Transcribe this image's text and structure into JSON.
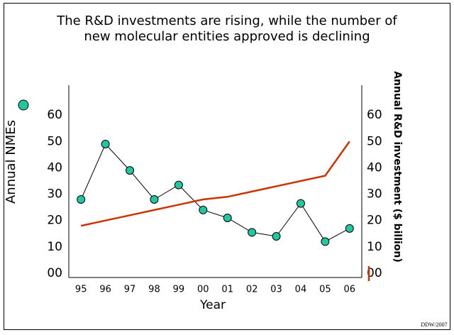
{
  "chart_data": {
    "type": "line",
    "title_lines": [
      "The R&D investments are rising, while the number of",
      "new molecular entities approved is declining"
    ],
    "x_label": "Year",
    "categories": [
      "95",
      "96",
      "97",
      "98",
      "99",
      "00",
      "01",
      "02",
      "03",
      "04",
      "05",
      "06"
    ],
    "series": [
      {
        "name": "Annual NMEs",
        "color": "#1fc8a0",
        "marker": "circle",
        "line_color": "#000000",
        "values": [
          28,
          49,
          39,
          28,
          33.5,
          24,
          21,
          15.5,
          14,
          26.5,
          12,
          17
        ]
      },
      {
        "name": "Annual R&D investment ($ billion)",
        "color": "#cc3300",
        "axis": "y2",
        "values": [
          18,
          20,
          22,
          24,
          26,
          28,
          29,
          31,
          33,
          35,
          37,
          50
        ]
      }
    ],
    "ylim": [
      0,
      70
    ],
    "yticks": [
      {
        "value": 0,
        "label": "00"
      },
      10,
      20,
      30,
      40,
      50,
      60
    ],
    "y2lim": [
      0,
      70
    ],
    "y2ticks": [
      {
        "value": 0,
        "label": "00"
      },
      10,
      20,
      30,
      40,
      50,
      60
    ],
    "grid": false,
    "footer": "DDW/2007"
  }
}
